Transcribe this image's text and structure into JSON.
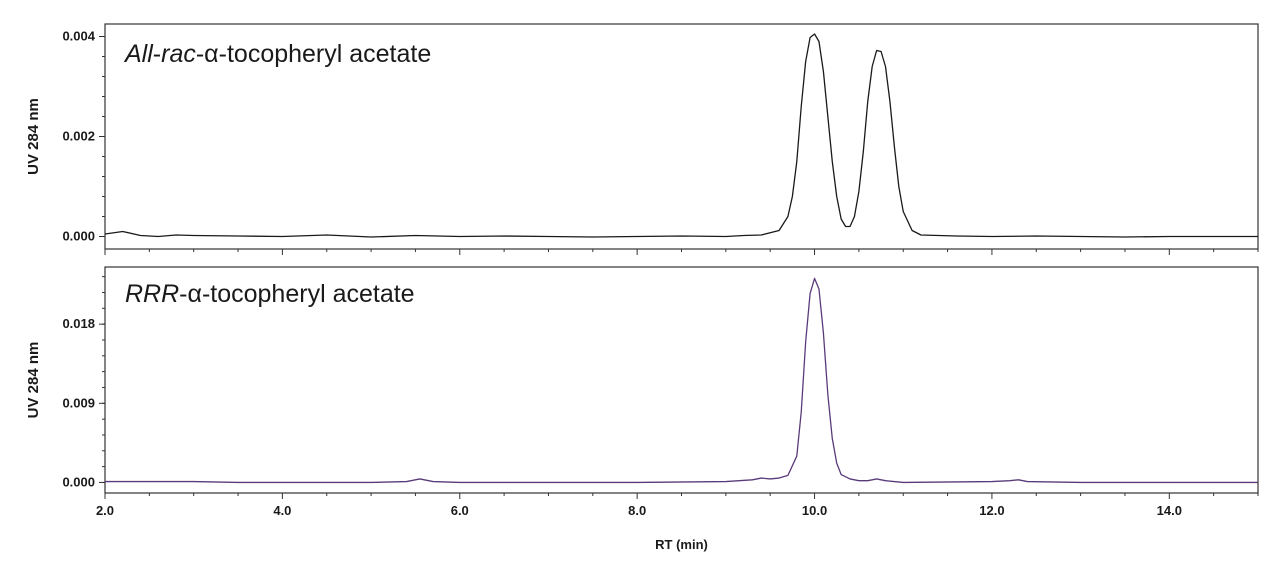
{
  "chart_data": [
    {
      "type": "line",
      "title_parts": [
        {
          "text": "All",
          "italic": true
        },
        {
          "text": "-",
          "italic": false
        },
        {
          "text": "rac",
          "italic": true
        },
        {
          "text": "-α-tocopheryl acetate",
          "italic": false
        }
      ],
      "ylabel": "UV 284 nm",
      "xlabel": "",
      "xlim": [
        2.0,
        15.0
      ],
      "ylim": [
        -0.00025,
        0.00425
      ],
      "y_ticks": [
        "0.000",
        "0.002",
        "0.004"
      ],
      "y_tick_values": [
        0.0,
        0.002,
        0.004
      ],
      "x_tick_labels_shown": false,
      "grid": false,
      "color": "#1a1a1a",
      "series": [
        {
          "x": [
            2.0,
            2.2,
            2.4,
            2.6,
            2.8,
            3.0,
            3.5,
            4.0,
            4.5,
            5.0,
            5.5,
            6.0,
            6.5,
            7.0,
            7.5,
            8.0,
            8.5,
            9.0,
            9.2,
            9.4,
            9.6,
            9.7,
            9.75,
            9.8,
            9.85,
            9.9,
            9.95,
            10.0,
            10.05,
            10.1,
            10.15,
            10.2,
            10.25,
            10.3,
            10.35,
            10.4,
            10.45,
            10.5,
            10.55,
            10.6,
            10.65,
            10.7,
            10.75,
            10.8,
            10.85,
            10.9,
            10.95,
            11.0,
            11.1,
            11.2,
            11.4,
            11.6,
            12.0,
            12.5,
            13.0,
            13.5,
            14.0,
            14.5,
            15.0
          ],
          "y": [
            5e-05,
            0.0001,
            2e-05,
            0.0,
            3e-05,
            2e-05,
            1e-05,
            0.0,
            3e-05,
            -1e-05,
            2e-05,
            0.0,
            1e-05,
            0.0,
            -1e-05,
            0.0,
            1e-05,
            0.0,
            2e-05,
            3e-05,
            0.00012,
            0.0004,
            0.0008,
            0.0015,
            0.0026,
            0.0035,
            0.00398,
            0.00405,
            0.0039,
            0.0033,
            0.0024,
            0.0015,
            0.0008,
            0.00035,
            0.0002,
            0.0002,
            0.0004,
            0.0009,
            0.0017,
            0.0027,
            0.0034,
            0.00372,
            0.0037,
            0.0034,
            0.0027,
            0.0018,
            0.001,
            0.0005,
            0.00012,
            3e-05,
            2e-05,
            1e-05,
            0.0,
            1e-05,
            0.0,
            -1e-05,
            0.0,
            0.0,
            0.0
          ]
        }
      ]
    },
    {
      "type": "line",
      "title_parts": [
        {
          "text": "RRR",
          "italic": true
        },
        {
          "text": "-α-tocopheryl acetate",
          "italic": false
        }
      ],
      "ylabel": "UV 284 nm",
      "xlabel": "RT (min)",
      "xlim": [
        2.0,
        15.0
      ],
      "ylim": [
        -0.0012,
        0.0245
      ],
      "y_ticks": [
        "0.000",
        "0.009",
        "0.018"
      ],
      "y_tick_values": [
        0.0,
        0.009,
        0.018
      ],
      "x_ticks": [
        "2.0",
        "4.0",
        "6.0",
        "8.0",
        "10.0",
        "12.0",
        "14.0"
      ],
      "x_tick_values": [
        2.0,
        4.0,
        6.0,
        8.0,
        10.0,
        12.0,
        14.0
      ],
      "grid": false,
      "color": "#5a3a7a",
      "series": [
        {
          "x": [
            2.0,
            2.5,
            3.0,
            3.5,
            4.0,
            4.5,
            5.0,
            5.4,
            5.55,
            5.7,
            6.0,
            7.0,
            8.0,
            9.0,
            9.3,
            9.4,
            9.5,
            9.6,
            9.7,
            9.8,
            9.85,
            9.9,
            9.95,
            10.0,
            10.05,
            10.1,
            10.15,
            10.2,
            10.25,
            10.3,
            10.4,
            10.5,
            10.6,
            10.7,
            10.8,
            11.0,
            12.0,
            12.2,
            12.3,
            12.4,
            13.0,
            14.0,
            15.0
          ],
          "y": [
            0.0001,
            0.0001,
            0.0001,
            0.0,
            0.0,
            0.0,
            0.0,
            0.0001,
            0.0004,
            0.0001,
            0.0,
            0.0,
            0.0,
            0.0001,
            0.0003,
            0.0005,
            0.0004,
            0.0005,
            0.0008,
            0.003,
            0.008,
            0.016,
            0.0215,
            0.0232,
            0.022,
            0.017,
            0.01,
            0.005,
            0.0022,
            0.0009,
            0.0004,
            0.0002,
            0.0002,
            0.0004,
            0.0002,
            0.0,
            0.0001,
            0.0002,
            0.0003,
            0.0001,
            0.0,
            0.0,
            0.0
          ]
        }
      ]
    }
  ]
}
